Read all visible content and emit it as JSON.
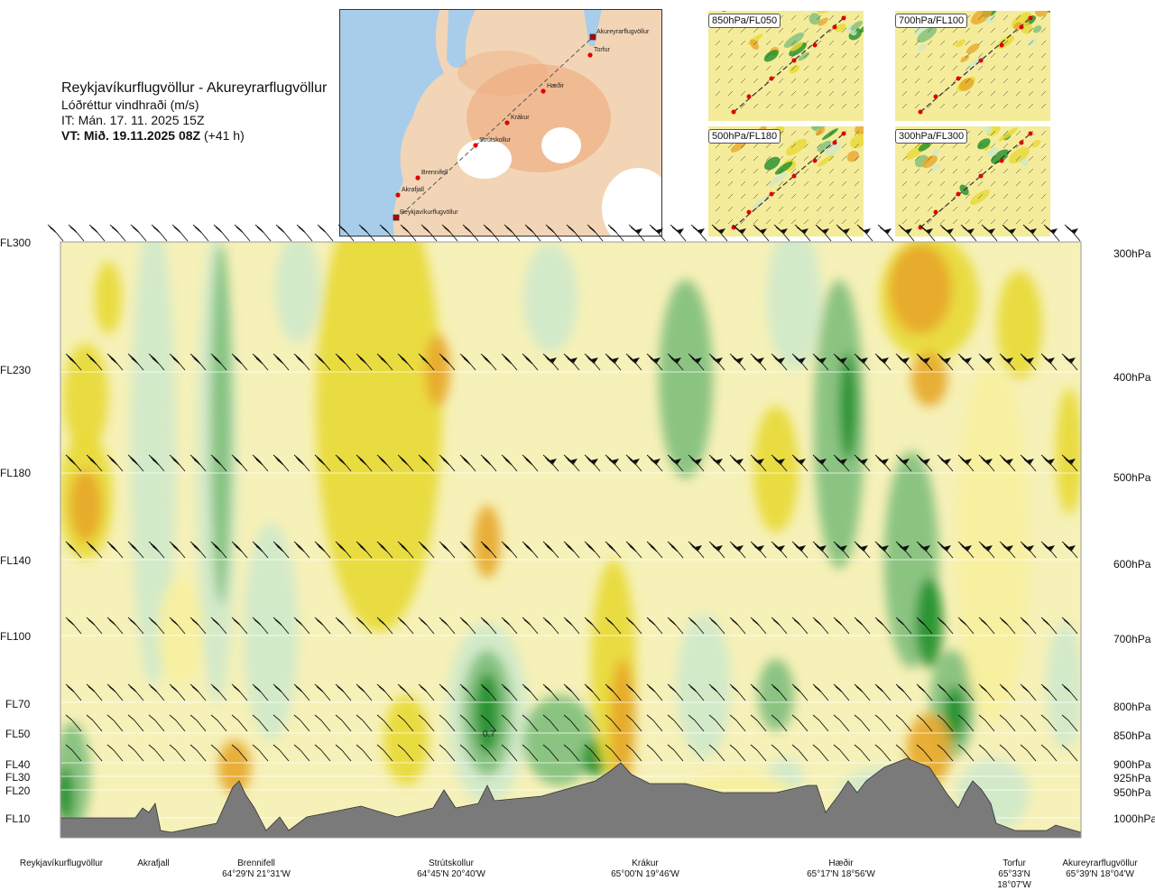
{
  "header": {
    "title": "Reykjavíkurflugvöllur - Akureyrarflugvöllur",
    "subtitle": "Lóðréttur vindhraði (m/s)",
    "issue_time": "IT: Mán. 17. 11. 2025 15Z",
    "valid_prefix": "VT: Mið. 19.11.2025 08Z",
    "valid_offset": "(+41 h)"
  },
  "route_map": {
    "points": [
      "Akureyrarflugvöllur",
      "Torfur",
      "Hæðir",
      "Krákur",
      "Strútskollur",
      "Brennifell",
      "Akrafjall",
      "Reykjavíkurflugvöllur"
    ],
    "colors": {
      "sea": "#a8cdeb",
      "land": "#f3d6b8",
      "highland": "#eea877",
      "glacier": "#ffffff",
      "route": "#555555",
      "point": "#e00000"
    }
  },
  "panels": [
    {
      "label": "850hPa/FL050"
    },
    {
      "label": "700hPa/FL100"
    },
    {
      "label": "500hPa/FL180"
    },
    {
      "label": "300hPa/FL300"
    }
  ],
  "levels": [
    {
      "fl": "FL300",
      "hpa": "300hPa"
    },
    {
      "fl": "FL230",
      "hpa": "400hPa"
    },
    {
      "fl": "FL180",
      "hpa": "500hPa"
    },
    {
      "fl": "FL140",
      "hpa": "600hPa"
    },
    {
      "fl": "FL100",
      "hpa": "700hPa"
    },
    {
      "fl": "FL70",
      "hpa": "800hPa"
    },
    {
      "fl": "FL50",
      "hpa": "850hPa"
    },
    {
      "fl": "FL40",
      "hpa": "900hPa"
    },
    {
      "fl": "FL30",
      "hpa": "925hPa"
    },
    {
      "fl": "FL20",
      "hpa": "950hPa"
    },
    {
      "fl": "FL10",
      "hpa": "1000hPa"
    }
  ],
  "contour_label": "0.7",
  "locations": [
    {
      "name": "Reykjavíkurflugvöllur",
      "coord": ""
    },
    {
      "name": "Akrafjall",
      "coord": ""
    },
    {
      "name": "Brennifell",
      "coord": "64°29'N 21°31'W"
    },
    {
      "name": "Strútskollur",
      "coord": "64°45'N 20°40'W"
    },
    {
      "name": "Krákur",
      "coord": "65°00'N 19°46'W"
    },
    {
      "name": "Hæðir",
      "coord": "65°17'N 18°56'W"
    },
    {
      "name": "Torfur",
      "coord": "65°33'N 18°07'W"
    },
    {
      "name": "Akureyrarflugvöllur",
      "coord": "65°39'N 18°04'W"
    }
  ],
  "colors": {
    "up_strong": "#1f8f2a",
    "up_mid": "#7fbf7b",
    "up_weak": "#cfe9cb",
    "down_weak": "#f7ef9e",
    "down_mid": "#e8d934",
    "down_strong": "#e7a72a",
    "terrain": "#7a7a7a"
  }
}
